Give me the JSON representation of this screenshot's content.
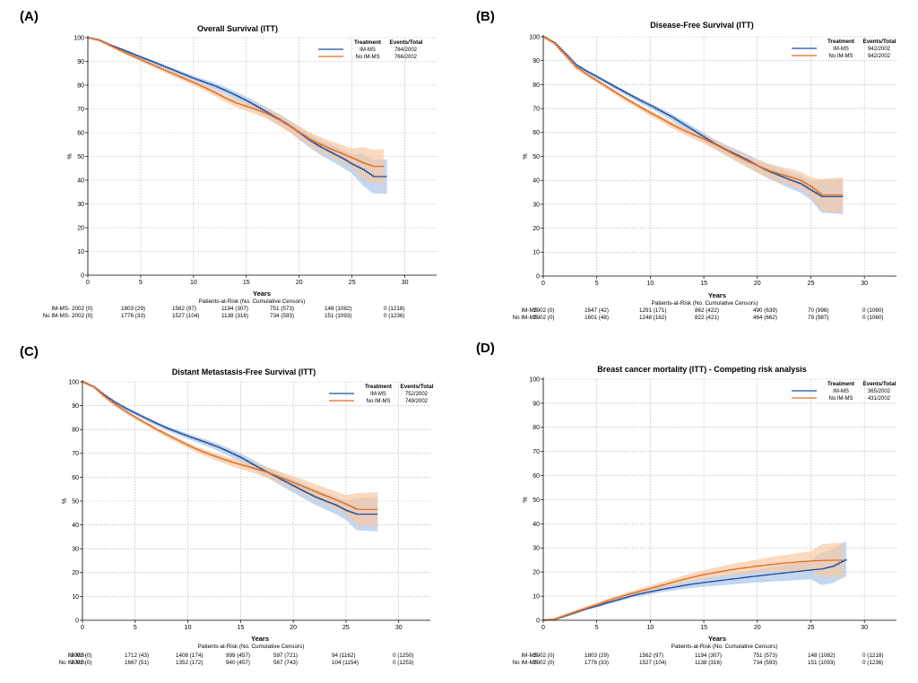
{
  "colors": {
    "im_ms": "#1F4E9E",
    "no_im_ms": "#E36C22",
    "im_ms_band": "#A9C6E8",
    "no_im_ms_band": "#F6C9A4",
    "grid": "#9A9A9A"
  },
  "risk_table_title": "Patients-at-Risk (No. Cumulative Censors)",
  "chart_data": [
    {
      "panel_label": "(A)",
      "type": "line",
      "title": "Overall Survival (ITT)",
      "xlabel": "Years",
      "ylabel": "%",
      "xlim": [
        0,
        33
      ],
      "ylim": [
        0,
        100
      ],
      "xticks": [
        0,
        5,
        10,
        15,
        20,
        25,
        30
      ],
      "yticks": [
        0,
        10,
        20,
        30,
        40,
        50,
        60,
        70,
        80,
        90,
        100
      ],
      "grid": true,
      "legend_position": "top-right",
      "legend_header": [
        "Treatment",
        "Events/Total"
      ],
      "series": [
        {
          "name": "IM-MS",
          "events": "784/2002",
          "x": [
            0,
            1,
            2,
            3,
            4,
            5,
            6,
            7,
            8,
            9,
            10,
            11,
            12,
            13,
            14,
            15,
            16,
            17,
            18,
            19,
            20,
            21,
            22,
            23,
            24,
            25,
            26,
            27,
            28.3
          ],
          "y": [
            100,
            99,
            97,
            95.3,
            93.5,
            91.7,
            90,
            88.2,
            86.4,
            84.6,
            82.8,
            81.2,
            79.6,
            77.7,
            75.6,
            73.4,
            70.9,
            68.3,
            65.7,
            63,
            59.8,
            56.6,
            53.9,
            51.6,
            49.3,
            46.7,
            44.5,
            41.5,
            41.5
          ]
        },
        {
          "name": "No IM-MS",
          "events": "766/2002",
          "x": [
            0,
            1,
            2,
            3,
            4,
            5,
            6,
            7,
            8,
            9,
            10,
            11,
            12,
            13,
            14,
            15,
            16,
            17,
            18,
            19,
            20,
            21,
            22,
            23,
            24,
            25,
            26,
            27,
            28
          ],
          "y": [
            100,
            99,
            96.8,
            94.6,
            92.6,
            90.6,
            88.7,
            86.7,
            84.8,
            82.9,
            81,
            79,
            76.8,
            74.5,
            72.5,
            71,
            69.5,
            67.8,
            65.5,
            62.8,
            60,
            57.2,
            55,
            53,
            51.2,
            49.3,
            47.3,
            45.8,
            45.8
          ]
        }
      ],
      "risk_table": [
        {
          "name": "IM-MS",
          "values": [
            "2002 (0)",
            "1803 (29)",
            "1562 (97)",
            "1194 (307)",
            "751 (573)",
            "148 (1082)",
            "0 (1218)"
          ]
        },
        {
          "name": "No IM-MS",
          "values": [
            "2002 (0)",
            "1776 (33)",
            "1527 (104)",
            "1138 (316)",
            "734 (593)",
            "151 (1093)",
            "0 (1236)"
          ]
        }
      ]
    },
    {
      "panel_label": "(B)",
      "type": "line",
      "title": "Disease-Free Survival (ITT)",
      "xlabel": "Years",
      "ylabel": "%",
      "xlim": [
        0,
        33
      ],
      "ylim": [
        0,
        100
      ],
      "xticks": [
        0,
        5,
        10,
        15,
        20,
        25,
        30
      ],
      "yticks": [
        0,
        10,
        20,
        30,
        40,
        50,
        60,
        70,
        80,
        90,
        100
      ],
      "grid": true,
      "legend_position": "top-right",
      "legend_header": [
        "Treatment",
        "Events/Total"
      ],
      "series": [
        {
          "name": "IM-MS",
          "events": "942/2002",
          "x": [
            0,
            1,
            2,
            3,
            4,
            5,
            6,
            7,
            8,
            9,
            10,
            11,
            12,
            13,
            14,
            15,
            16,
            17,
            18,
            19,
            20,
            21,
            22,
            23,
            24,
            25,
            26,
            27,
            28
          ],
          "y": [
            100,
            97.5,
            93,
            88.3,
            85.6,
            83.2,
            80.7,
            78.2,
            75.8,
            73.4,
            71.2,
            68.8,
            66.4,
            63.6,
            60.8,
            58,
            55.2,
            52.8,
            50.7,
            48.5,
            46,
            43.8,
            42,
            40.2,
            38.6,
            35.8,
            33.2,
            33.2,
            33.2
          ]
        },
        {
          "name": "No IM-MS",
          "events": "942/2002",
          "x": [
            0,
            1,
            2,
            3,
            4,
            5,
            6,
            7,
            8,
            9,
            10,
            11,
            12,
            13,
            14,
            15,
            16,
            17,
            18,
            19,
            20,
            21,
            22,
            23,
            24,
            25,
            26,
            27,
            28
          ],
          "y": [
            100,
            97.3,
            92.3,
            87.3,
            84.3,
            81.5,
            78.7,
            75.9,
            73.2,
            70.6,
            68.1,
            65.7,
            63.2,
            61,
            59,
            57.1,
            55,
            52.6,
            50.2,
            48,
            46,
            44.1,
            42.7,
            41.4,
            40,
            37.3,
            33.9,
            33.9,
            33.9
          ]
        }
      ],
      "risk_table": [
        {
          "name": "IM-MS",
          "values": [
            "2002 (0)",
            "1647 (42)",
            "1291 (171)",
            "862 (422)",
            "490 (639)",
            "70 (996)",
            "0 (1060)"
          ]
        },
        {
          "name": "No IM-MS",
          "values": [
            "2002 (0)",
            "1601 (48)",
            "1248 (162)",
            "822 (421)",
            "464 (662)",
            "79 (987)",
            "0 (1060)"
          ]
        }
      ]
    },
    {
      "panel_label": "(C)",
      "type": "line",
      "title": "Distant Metastasis-Free Survival (ITT)",
      "xlabel": "Years",
      "ylabel": "%",
      "xlim": [
        0,
        33
      ],
      "ylim": [
        0,
        100
      ],
      "xticks": [
        0,
        5,
        10,
        15,
        20,
        25,
        30
      ],
      "yticks": [
        0,
        10,
        20,
        30,
        40,
        50,
        60,
        70,
        80,
        90,
        100
      ],
      "grid": true,
      "legend_position": "top-right",
      "legend_header": [
        "Treatment",
        "Events/Total"
      ],
      "series": [
        {
          "name": "IM-MS",
          "events": "752/2002",
          "x": [
            0,
            1,
            2,
            3,
            4,
            5,
            6,
            7,
            8,
            9,
            10,
            11,
            12,
            13,
            14,
            15,
            16,
            17,
            18,
            19,
            20,
            21,
            22,
            23,
            24,
            25,
            26,
            27,
            28
          ],
          "y": [
            100,
            98,
            94.5,
            91.5,
            89,
            86.8,
            84.6,
            82.5,
            80.5,
            78.8,
            77.1,
            75.6,
            74,
            72.3,
            70.3,
            68.2,
            65.7,
            63.2,
            60.9,
            58.6,
            56.3,
            54,
            51.8,
            50,
            48.3,
            46,
            44.5,
            44.5,
            44.5
          ]
        },
        {
          "name": "No IM-MS",
          "events": "749/2002",
          "x": [
            0,
            1,
            2,
            3,
            4,
            5,
            6,
            7,
            8,
            9,
            10,
            11,
            12,
            13,
            14,
            15,
            16,
            17,
            18,
            19,
            20,
            21,
            22,
            23,
            24,
            25,
            26,
            27,
            28
          ],
          "y": [
            100,
            98,
            94,
            90.6,
            87.7,
            85,
            82.5,
            80,
            77.7,
            75.5,
            73.3,
            71.3,
            69.6,
            68,
            66.5,
            65.2,
            64,
            62.7,
            61.2,
            59.5,
            57.7,
            55.9,
            54,
            52.2,
            50.5,
            48.6,
            46.5,
            46.5,
            46.5
          ]
        }
      ],
      "risk_table": [
        {
          "name": "IM-MS",
          "values": [
            "2002 (0)",
            "1712 (43)",
            "1408 (174)",
            "999 (457)",
            "597 (721)",
            "94 (1162)",
            "0 (1250)"
          ]
        },
        {
          "name": "No IM-MS",
          "values": [
            "2002 (0)",
            "1667 (51)",
            "1352 (172)",
            "940 (457)",
            "567 (743)",
            "104 (1154)",
            "0 (1253)"
          ]
        }
      ]
    },
    {
      "panel_label": "(D)",
      "type": "line",
      "title": "Breast cancer mortality (ITT) - Competing risk analysis",
      "xlabel": "Years",
      "ylabel": "%",
      "xlim": [
        0,
        33
      ],
      "ylim": [
        0,
        100
      ],
      "xticks": [
        0,
        5,
        10,
        15,
        20,
        25,
        30
      ],
      "yticks": [
        0,
        10,
        20,
        30,
        40,
        50,
        60,
        70,
        80,
        90,
        100
      ],
      "grid": true,
      "legend_position": "top-right",
      "legend_header": [
        "Treatment",
        "Events/Total"
      ],
      "series": [
        {
          "name": "IM-MS",
          "events": "365/2002",
          "x": [
            0,
            1,
            2,
            3,
            4,
            5,
            6,
            7,
            8,
            9,
            10,
            11,
            12,
            13,
            14,
            15,
            16,
            17,
            18,
            19,
            20,
            21,
            22,
            23,
            24,
            25,
            26,
            27,
            28.3
          ],
          "y": [
            0,
            0.3,
            1.8,
            3.3,
            4.8,
            6,
            7.4,
            8.6,
            9.9,
            11,
            11.9,
            12.8,
            13.6,
            14.4,
            15.1,
            15.7,
            16.2,
            16.8,
            17.3,
            17.9,
            18.4,
            18.9,
            19.4,
            19.9,
            20.4,
            20.9,
            21.3,
            22.4,
            25.4
          ]
        },
        {
          "name": "No IM-MS",
          "events": "431/2002",
          "x": [
            0,
            1,
            2,
            3,
            4,
            5,
            6,
            7,
            8,
            9,
            10,
            11,
            12,
            13,
            14,
            15,
            16,
            17,
            18,
            19,
            20,
            21,
            22,
            23,
            24,
            25,
            26,
            27,
            28
          ],
          "y": [
            0,
            0.4,
            2,
            3.6,
            5.1,
            6.6,
            8.2,
            9.6,
            10.9,
            12.1,
            13.3,
            14.5,
            15.7,
            16.9,
            18,
            19,
            19.8,
            20.6,
            21.3,
            21.9,
            22.5,
            23,
            23.5,
            23.9,
            24.3,
            24.6,
            24.8,
            24.9,
            24.9
          ]
        }
      ],
      "risk_table": [
        {
          "name": "IM-MS",
          "values": [
            "2002 (0)",
            "1803 (29)",
            "1562 (97)",
            "1194 (307)",
            "751 (573)",
            "148 (1082)",
            "0 (1218)"
          ]
        },
        {
          "name": "No IM-MS",
          "values": [
            "2002 (0)",
            "1776 (33)",
            "1527 (104)",
            "1138 (316)",
            "734 (593)",
            "151 (1093)",
            "0 (1236)"
          ]
        }
      ]
    }
  ]
}
